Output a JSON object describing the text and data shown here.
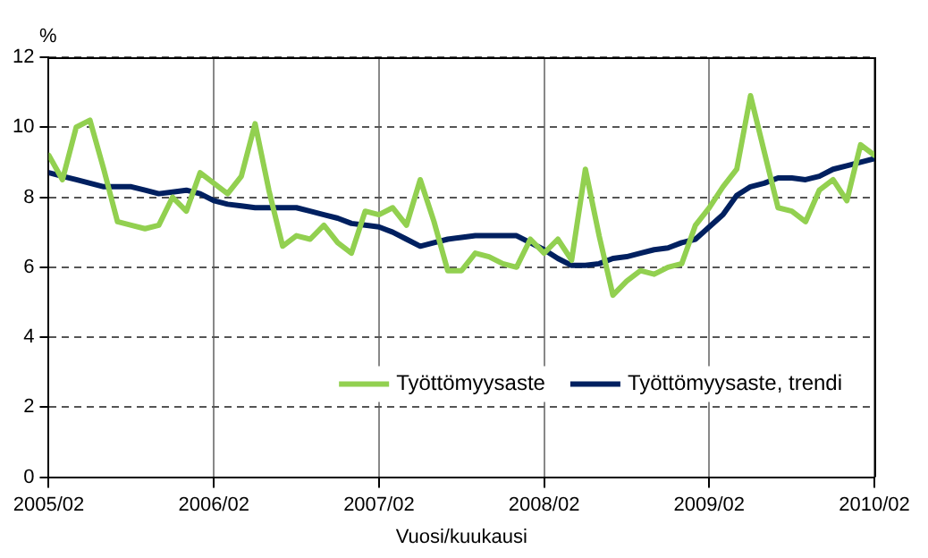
{
  "chart_data": {
    "type": "line",
    "ylabel": "%",
    "xlabel": "Vuosi/kuukausi",
    "x": [
      "2005-02",
      "2005-03",
      "2005-04",
      "2005-05",
      "2005-06",
      "2005-07",
      "2005-08",
      "2005-09",
      "2005-10",
      "2005-11",
      "2005-12",
      "2006-01",
      "2006-02",
      "2006-03",
      "2006-04",
      "2006-05",
      "2006-06",
      "2006-07",
      "2006-08",
      "2006-09",
      "2006-10",
      "2006-11",
      "2006-12",
      "2007-01",
      "2007-02",
      "2007-03",
      "2007-04",
      "2007-05",
      "2007-06",
      "2007-07",
      "2007-08",
      "2007-09",
      "2007-10",
      "2007-11",
      "2007-12",
      "2008-01",
      "2008-02",
      "2008-03",
      "2008-04",
      "2008-05",
      "2008-06",
      "2008-07",
      "2008-08",
      "2008-09",
      "2008-10",
      "2008-11",
      "2008-12",
      "2009-01",
      "2009-02",
      "2009-03",
      "2009-04",
      "2009-05",
      "2009-06",
      "2009-07",
      "2009-08",
      "2009-09",
      "2009-10",
      "2009-11",
      "2009-12",
      "2010-01",
      "2010-02"
    ],
    "series": [
      {
        "name": "Työttömyysaste",
        "color": "#92d050",
        "values": [
          9.2,
          8.5,
          10.0,
          10.2,
          8.8,
          7.3,
          7.2,
          7.1,
          7.2,
          8.0,
          7.6,
          8.7,
          8.4,
          8.1,
          8.6,
          10.1,
          8.2,
          6.6,
          6.9,
          6.8,
          7.2,
          6.7,
          6.4,
          7.6,
          7.5,
          7.7,
          7.2,
          8.5,
          7.3,
          5.9,
          5.9,
          6.4,
          6.3,
          6.1,
          6.0,
          6.8,
          6.4,
          6.8,
          6.2,
          8.8,
          6.9,
          5.2,
          5.6,
          5.9,
          5.8,
          6.0,
          6.1,
          7.2,
          7.7,
          8.3,
          8.8,
          10.9,
          9.3,
          7.7,
          7.6,
          7.3,
          8.2,
          8.5,
          7.9,
          9.5,
          9.2
        ]
      },
      {
        "name": "Työttömyysaste, trendi",
        "color": "#002060",
        "values": [
          8.7,
          8.6,
          8.5,
          8.4,
          8.3,
          8.3,
          8.3,
          8.2,
          8.1,
          8.15,
          8.2,
          8.1,
          7.9,
          7.8,
          7.75,
          7.7,
          7.7,
          7.7,
          7.7,
          7.6,
          7.5,
          7.4,
          7.25,
          7.2,
          7.15,
          7.0,
          6.8,
          6.6,
          6.7,
          6.8,
          6.85,
          6.9,
          6.9,
          6.9,
          6.9,
          6.7,
          6.5,
          6.25,
          6.05,
          6.05,
          6.1,
          6.25,
          6.3,
          6.4,
          6.5,
          6.55,
          6.7,
          6.8,
          7.15,
          7.5,
          8.05,
          8.3,
          8.4,
          8.55,
          8.55,
          8.5,
          8.6,
          8.8,
          8.9,
          9.0,
          9.1
        ]
      }
    ],
    "xlim": [
      "2005-02",
      "2010-02"
    ],
    "xticks": [
      {
        "value": "2005-02",
        "label": "2005/02"
      },
      {
        "value": "2006-02",
        "label": "2006/02"
      },
      {
        "value": "2007-02",
        "label": "2007/02"
      },
      {
        "value": "2008-02",
        "label": "2008/02"
      },
      {
        "value": "2009-02",
        "label": "2009/02"
      },
      {
        "value": "2010-02",
        "label": "2010/02"
      }
    ],
    "ylim": [
      0,
      12
    ],
    "yticks": [
      0,
      2,
      4,
      6,
      8,
      10,
      12
    ],
    "grid": true,
    "legend": "bottom right",
    "marker": "none",
    "line_style": "solid"
  }
}
